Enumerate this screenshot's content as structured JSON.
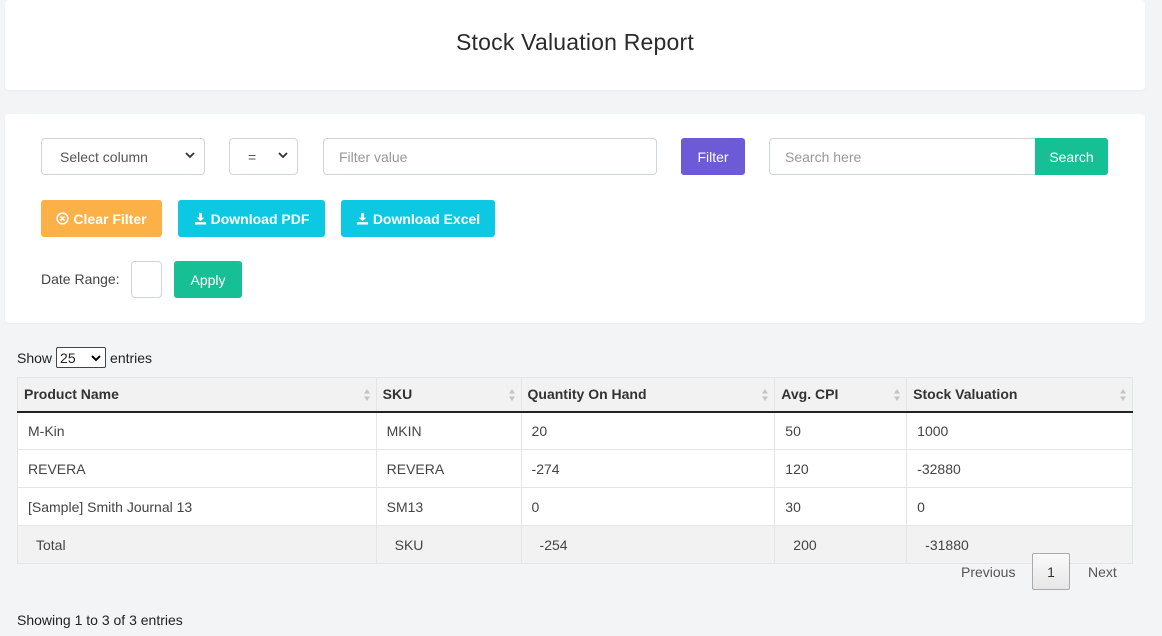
{
  "header": {
    "title": "Stock Valuation Report"
  },
  "filter": {
    "column_select": "Select column",
    "operator_select": "=",
    "value_placeholder": "Filter value",
    "filter_label": "Filter",
    "search_placeholder": "Search here",
    "search_label": "Search",
    "clear_label": "Clear Filter",
    "pdf_label": "Download PDF",
    "excel_label": "Download Excel",
    "date_range_label": "Date Range:",
    "apply_label": "Apply"
  },
  "table_controls": {
    "show_label": "Show",
    "length_value": "25",
    "entries_label": "entries"
  },
  "table": {
    "headers": [
      "Product Name",
      "SKU",
      "Quantity On Hand",
      "Avg. CPI",
      "Stock Valuation"
    ],
    "rows": [
      [
        "M-Kin",
        "MKIN",
        "20",
        "50",
        "1000"
      ],
      [
        "REVERA",
        "REVERA",
        "-274",
        "120",
        "-32880"
      ],
      [
        "[Sample] Smith Journal 13",
        "SM13",
        "0",
        "30",
        "0"
      ]
    ],
    "total": [
      "Total",
      "SKU",
      "-254",
      "200",
      "-31880"
    ]
  },
  "pagination": {
    "previous_label": "Previous",
    "current_page": "1",
    "next_label": "Next",
    "info": "Showing 1 to 3 of 3 entries"
  },
  "colors": {
    "filter_btn": "#6c5ad6",
    "search_btn": "#17bf94",
    "clear_btn": "#fbb147",
    "download_btn": "#0cc8e2",
    "apply_btn": "#17bf94"
  }
}
